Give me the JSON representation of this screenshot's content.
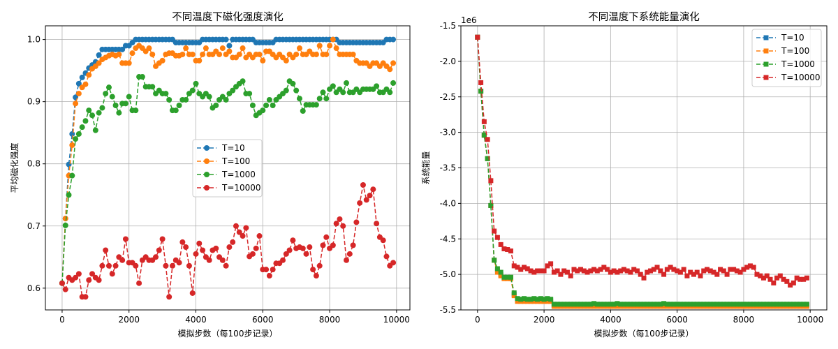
{
  "chart_data": [
    {
      "type": "line",
      "title": "不同温度下磁化强度演化",
      "xlabel": "模拟步数（每100步记录）",
      "ylabel": "平均磁化强度",
      "xlim": [
        -500,
        10400
      ],
      "ylim": [
        0.565,
        1.022
      ],
      "xticks": [
        "0",
        "2000",
        "4000",
        "6000",
        "8000",
        "10000"
      ],
      "yticks": [
        "0.6",
        "0.7",
        "0.8",
        "0.9",
        "1.0"
      ],
      "grid": true,
      "legend_position": "center-right",
      "marker": "circle",
      "x": [
        0,
        100,
        200,
        300,
        400,
        500,
        600,
        700,
        800,
        900,
        1000,
        1100,
        1200,
        1300,
        1400,
        1500,
        1600,
        1700,
        1800,
        1900,
        2000,
        2100,
        2200,
        2300,
        2400,
        2500,
        2600,
        2700,
        2800,
        2900,
        3000,
        3100,
        3200,
        3300,
        3400,
        3500,
        3600,
        3700,
        3800,
        3900,
        4000,
        4100,
        4200,
        4300,
        4400,
        4500,
        4600,
        4700,
        4800,
        4900,
        5000,
        5100,
        5200,
        5300,
        5400,
        5500,
        5600,
        5700,
        5800,
        5900,
        6000,
        6100,
        6200,
        6300,
        6400,
        6500,
        6600,
        6700,
        6800,
        6900,
        7000,
        7100,
        7200,
        7300,
        7400,
        7500,
        7600,
        7700,
        7800,
        7900,
        8000,
        8100,
        8200,
        8300,
        8400,
        8500,
        8600,
        8700,
        8800,
        8900,
        9000,
        9100,
        9200,
        9300,
        9400,
        9500,
        9600,
        9700,
        9800,
        9900
      ],
      "series": [
        {
          "name": "T=10",
          "color": "#1f77b4",
          "values": [
            0.608,
            0.712,
            0.799,
            0.848,
            0.907,
            0.929,
            0.939,
            0.946,
            0.954,
            0.959,
            0.964,
            0.975,
            0.984,
            0.984,
            0.984,
            0.984,
            0.984,
            0.984,
            0.984,
            0.99,
            0.99,
            0.995,
            1.0,
            1.0,
            1.0,
            1.0,
            1.0,
            1.0,
            1.0,
            1.0,
            1.0,
            1.0,
            1.0,
            1.0,
            0.995,
            0.995,
            0.995,
            0.995,
            0.995,
            0.995,
            0.995,
            0.995,
            1.0,
            1.0,
            1.0,
            1.0,
            1.0,
            1.0,
            1.0,
            1.0,
            0.99,
            1.0,
            1.0,
            1.0,
            1.0,
            1.0,
            1.0,
            1.0,
            0.995,
            0.995,
            0.995,
            0.995,
            0.995,
            0.995,
            1.0,
            1.0,
            1.0,
            1.0,
            1.0,
            1.0,
            1.0,
            1.0,
            1.0,
            1.0,
            1.0,
            1.0,
            1.0,
            1.0,
            1.0,
            1.0,
            1.0,
            1.0,
            1.0,
            0.995,
            0.995,
            0.995,
            0.995,
            0.995,
            0.995,
            0.995,
            0.995,
            0.995,
            0.995,
            0.995,
            0.995,
            0.995,
            0.995,
            1.0,
            1.0,
            1.0
          ]
        },
        {
          "name": "T=100",
          "color": "#ff7f0e",
          "values": [
            0.608,
            0.712,
            0.781,
            0.83,
            0.897,
            0.913,
            0.923,
            0.928,
            0.943,
            0.953,
            0.957,
            0.962,
            0.968,
            0.971,
            0.974,
            0.976,
            0.974,
            0.976,
            0.962,
            0.962,
            0.962,
            0.978,
            0.986,
            0.99,
            0.986,
            0.981,
            0.986,
            0.976,
            0.957,
            0.962,
            0.966,
            0.976,
            0.978,
            0.978,
            0.974,
            0.974,
            0.976,
            0.986,
            0.976,
            0.976,
            0.966,
            0.966,
            0.976,
            0.986,
            0.976,
            0.976,
            0.981,
            0.976,
            0.986,
            0.976,
            0.981,
            0.971,
            0.971,
            0.976,
            0.986,
            0.971,
            0.976,
            0.971,
            0.976,
            0.976,
            0.966,
            0.981,
            0.981,
            0.976,
            0.971,
            0.976,
            0.971,
            0.966,
            0.976,
            0.971,
            0.976,
            0.986,
            0.976,
            0.976,
            0.981,
            0.976,
            0.976,
            0.99,
            0.976,
            0.976,
            0.99,
            1.0,
            0.986,
            0.976,
            0.976,
            0.976,
            0.976,
            0.976,
            0.966,
            0.962,
            0.962,
            0.962,
            0.957,
            0.962,
            0.962,
            0.957,
            0.962,
            0.957,
            0.952,
            0.962
          ]
        },
        {
          "name": "T=1000",
          "color": "#2ca02c",
          "values": [
            0.608,
            0.701,
            0.75,
            0.781,
            0.84,
            0.848,
            0.859,
            0.869,
            0.886,
            0.878,
            0.854,
            0.882,
            0.89,
            0.913,
            0.923,
            0.908,
            0.894,
            0.882,
            0.897,
            0.897,
            0.908,
            0.886,
            0.886,
            0.94,
            0.94,
            0.924,
            0.924,
            0.924,
            0.913,
            0.918,
            0.913,
            0.913,
            0.903,
            0.886,
            0.886,
            0.894,
            0.903,
            0.903,
            0.913,
            0.918,
            0.929,
            0.913,
            0.908,
            0.913,
            0.908,
            0.89,
            0.894,
            0.903,
            0.908,
            0.903,
            0.913,
            0.918,
            0.924,
            0.929,
            0.933,
            0.913,
            0.913,
            0.894,
            0.878,
            0.882,
            0.886,
            0.894,
            0.903,
            0.894,
            0.903,
            0.908,
            0.913,
            0.918,
            0.933,
            0.929,
            0.918,
            0.905,
            0.885,
            0.895,
            0.895,
            0.895,
            0.895,
            0.905,
            0.915,
            0.905,
            0.92,
            0.925,
            0.915,
            0.92,
            0.915,
            0.93,
            0.915,
            0.915,
            0.92,
            0.915,
            0.92,
            0.92,
            0.92,
            0.92,
            0.925,
            0.915,
            0.915,
            0.92,
            0.915,
            0.93
          ]
        },
        {
          "name": "T=10000",
          "color": "#d62728",
          "values": [
            0.608,
            0.598,
            0.617,
            0.613,
            0.617,
            0.623,
            0.586,
            0.586,
            0.613,
            0.623,
            0.617,
            0.613,
            0.636,
            0.661,
            0.636,
            0.623,
            0.636,
            0.65,
            0.645,
            0.679,
            0.641,
            0.641,
            0.636,
            0.608,
            0.645,
            0.65,
            0.645,
            0.645,
            0.65,
            0.661,
            0.679,
            0.636,
            0.586,
            0.636,
            0.645,
            0.641,
            0.674,
            0.666,
            0.636,
            0.592,
            0.655,
            0.672,
            0.661,
            0.65,
            0.645,
            0.661,
            0.664,
            0.65,
            0.645,
            0.636,
            0.666,
            0.674,
            0.7,
            0.69,
            0.684,
            0.697,
            0.651,
            0.655,
            0.664,
            0.684,
            0.63,
            0.63,
            0.62,
            0.63,
            0.64,
            0.64,
            0.645,
            0.655,
            0.661,
            0.677,
            0.664,
            0.666,
            0.664,
            0.655,
            0.666,
            0.63,
            0.62,
            0.636,
            0.669,
            0.682,
            0.664,
            0.669,
            0.704,
            0.711,
            0.7,
            0.645,
            0.655,
            0.669,
            0.706,
            0.737,
            0.766,
            0.742,
            0.749,
            0.759,
            0.704,
            0.682,
            0.677,
            0.651,
            0.636,
            0.641
          ]
        }
      ]
    },
    {
      "type": "line",
      "title": "不同温度下系统能量演化",
      "xlabel": "模拟步数（每100步记录）",
      "ylabel": "系统能量",
      "offset_label": "1e6",
      "xlim": [
        -500,
        10500
      ],
      "ylim": [
        -5.5,
        -1.5
      ],
      "xticks": [
        "0",
        "2000",
        "4000",
        "6000",
        "8000",
        "10000"
      ],
      "yticks": [
        "-1.5",
        "-2.0",
        "-2.5",
        "-3.0",
        "-3.5",
        "-4.0",
        "-4.5",
        "-5.0",
        "-5.5"
      ],
      "grid": true,
      "legend_position": "top-right",
      "marker": "square",
      "x": [
        0,
        100,
        200,
        300,
        400,
        500,
        600,
        700,
        800,
        900,
        1000,
        1100,
        1200,
        1300,
        1400,
        1500,
        1600,
        1700,
        1800,
        1900,
        2000,
        2100,
        2200,
        2300,
        2400,
        2500,
        2600,
        2700,
        2800,
        2900,
        3000,
        3100,
        3200,
        3300,
        3400,
        3500,
        3600,
        3700,
        3800,
        3900,
        4000,
        4100,
        4200,
        4300,
        4400,
        4500,
        4600,
        4700,
        4800,
        4900,
        5000,
        5100,
        5200,
        5300,
        5400,
        5500,
        5600,
        5700,
        5800,
        5900,
        6000,
        6100,
        6200,
        6300,
        6400,
        6500,
        6600,
        6700,
        6800,
        6900,
        7000,
        7100,
        7200,
        7300,
        7400,
        7500,
        7600,
        7700,
        7800,
        7900,
        8000,
        8100,
        8200,
        8300,
        8400,
        8500,
        8600,
        8700,
        8800,
        8900,
        9000,
        9100,
        9200,
        9300,
        9400,
        9500,
        9600,
        9700,
        9800,
        9900
      ],
      "series": [
        {
          "name": "T=10",
          "color": "#1f77b4",
          "values": [
            -1.66,
            -2.42,
            -3.04,
            -3.37,
            -4.03,
            -4.8,
            -4.95,
            -5.0,
            -5.05,
            -5.05,
            -5.05,
            -5.28,
            -5.36,
            -5.36,
            -5.36,
            -5.36,
            -5.36,
            -5.36,
            -5.36,
            -5.36,
            -5.36,
            -5.36,
            -5.36,
            -5.44,
            -5.44,
            -5.44,
            -5.44,
            -5.44,
            -5.44,
            -5.44,
            -5.44,
            -5.44,
            -5.44,
            -5.44,
            -5.44,
            -5.44,
            -5.44,
            -5.44,
            -5.44,
            -5.44,
            -5.44,
            -5.44,
            -5.44,
            -5.44,
            -5.44,
            -5.44,
            -5.44,
            -5.44,
            -5.44,
            -5.44,
            -5.44,
            -5.44,
            -5.44,
            -5.44,
            -5.44,
            -5.44,
            -5.44,
            -5.44,
            -5.44,
            -5.44,
            -5.44,
            -5.44,
            -5.44,
            -5.44,
            -5.44,
            -5.44,
            -5.44,
            -5.44,
            -5.44,
            -5.44,
            -5.44,
            -5.44,
            -5.44,
            -5.44,
            -5.44,
            -5.44,
            -5.44,
            -5.44,
            -5.44,
            -5.44,
            -5.44,
            -5.44,
            -5.44,
            -5.44,
            -5.44,
            -5.44,
            -5.44,
            -5.44,
            -5.44,
            -5.44,
            -5.44,
            -5.44,
            -5.44,
            -5.44,
            -5.44,
            -5.44,
            -5.44,
            -5.44,
            -5.44,
            -5.44
          ]
        },
        {
          "name": "T=100",
          "color": "#ff7f0e",
          "values": [
            -1.66,
            -2.42,
            -3.04,
            -3.37,
            -4.03,
            -4.8,
            -4.97,
            -5.02,
            -5.06,
            -5.06,
            -5.06,
            -5.3,
            -5.38,
            -5.38,
            -5.38,
            -5.38,
            -5.38,
            -5.38,
            -5.38,
            -5.38,
            -5.38,
            -5.38,
            -5.38,
            -5.45,
            -5.45,
            -5.45,
            -5.45,
            -5.45,
            -5.45,
            -5.45,
            -5.45,
            -5.45,
            -5.45,
            -5.45,
            -5.45,
            -5.45,
            -5.45,
            -5.45,
            -5.45,
            -5.45,
            -5.45,
            -5.45,
            -5.45,
            -5.45,
            -5.45,
            -5.45,
            -5.45,
            -5.45,
            -5.45,
            -5.45,
            -5.45,
            -5.45,
            -5.45,
            -5.45,
            -5.45,
            -5.45,
            -5.45,
            -5.45,
            -5.45,
            -5.45,
            -5.45,
            -5.45,
            -5.45,
            -5.45,
            -5.45,
            -5.45,
            -5.45,
            -5.45,
            -5.45,
            -5.45,
            -5.45,
            -5.45,
            -5.45,
            -5.45,
            -5.45,
            -5.45,
            -5.45,
            -5.45,
            -5.45,
            -5.45,
            -5.45,
            -5.45,
            -5.45,
            -5.45,
            -5.45,
            -5.45,
            -5.45,
            -5.45,
            -5.45,
            -5.45,
            -5.45,
            -5.45,
            -5.45,
            -5.45,
            -5.45,
            -5.45,
            -5.45,
            -5.45,
            -5.45,
            -5.45
          ]
        },
        {
          "name": "T=1000",
          "color": "#2ca02c",
          "values": [
            -1.66,
            -2.42,
            -3.04,
            -3.37,
            -4.03,
            -4.8,
            -4.92,
            -4.97,
            -5.04,
            -5.04,
            -5.04,
            -5.26,
            -5.34,
            -5.35,
            -5.34,
            -5.35,
            -5.35,
            -5.34,
            -5.35,
            -5.34,
            -5.35,
            -5.34,
            -5.35,
            -5.42,
            -5.42,
            -5.42,
            -5.42,
            -5.42,
            -5.42,
            -5.42,
            -5.42,
            -5.42,
            -5.42,
            -5.42,
            -5.42,
            -5.41,
            -5.42,
            -5.42,
            -5.42,
            -5.42,
            -5.42,
            -5.42,
            -5.41,
            -5.42,
            -5.42,
            -5.42,
            -5.42,
            -5.42,
            -5.42,
            -5.42,
            -5.42,
            -5.42,
            -5.42,
            -5.42,
            -5.42,
            -5.42,
            -5.41,
            -5.42,
            -5.42,
            -5.42,
            -5.42,
            -5.42,
            -5.42,
            -5.42,
            -5.42,
            -5.42,
            -5.42,
            -5.42,
            -5.42,
            -5.42,
            -5.42,
            -5.42,
            -5.42,
            -5.42,
            -5.42,
            -5.42,
            -5.42,
            -5.42,
            -5.42,
            -5.42,
            -5.42,
            -5.42,
            -5.42,
            -5.42,
            -5.42,
            -5.42,
            -5.42,
            -5.42,
            -5.42,
            -5.42,
            -5.42,
            -5.42,
            -5.42,
            -5.42,
            -5.42,
            -5.42,
            -5.42,
            -5.42,
            -5.42,
            -5.42
          ]
        },
        {
          "name": "T=10000",
          "color": "#d62728",
          "values": [
            -1.66,
            -2.3,
            -2.85,
            -3.1,
            -3.68,
            -4.39,
            -4.48,
            -4.58,
            -4.64,
            -4.65,
            -4.67,
            -4.88,
            -4.9,
            -4.93,
            -4.9,
            -4.92,
            -4.95,
            -4.97,
            -4.95,
            -4.95,
            -4.95,
            -4.88,
            -4.85,
            -4.97,
            -4.95,
            -5.0,
            -4.95,
            -4.97,
            -5.02,
            -4.93,
            -4.95,
            -4.93,
            -4.95,
            -4.97,
            -4.95,
            -4.93,
            -4.95,
            -4.93,
            -4.9,
            -4.93,
            -4.97,
            -4.95,
            -4.97,
            -4.95,
            -4.93,
            -4.95,
            -4.97,
            -4.93,
            -4.95,
            -5.0,
            -5.05,
            -4.97,
            -4.95,
            -4.93,
            -4.9,
            -4.95,
            -5.0,
            -4.93,
            -4.9,
            -4.93,
            -4.95,
            -4.97,
            -4.93,
            -5.02,
            -4.97,
            -5.0,
            -4.97,
            -5.02,
            -4.95,
            -4.93,
            -4.95,
            -4.97,
            -5.0,
            -4.93,
            -4.95,
            -5.0,
            -4.93,
            -4.93,
            -4.95,
            -4.97,
            -4.93,
            -4.9,
            -4.88,
            -4.9,
            -5.0,
            -5.02,
            -5.05,
            -5.02,
            -5.07,
            -5.12,
            -5.05,
            -5.02,
            -5.07,
            -5.1,
            -5.15,
            -5.12,
            -5.05,
            -5.07,
            -5.07,
            -5.05
          ]
        }
      ]
    }
  ]
}
